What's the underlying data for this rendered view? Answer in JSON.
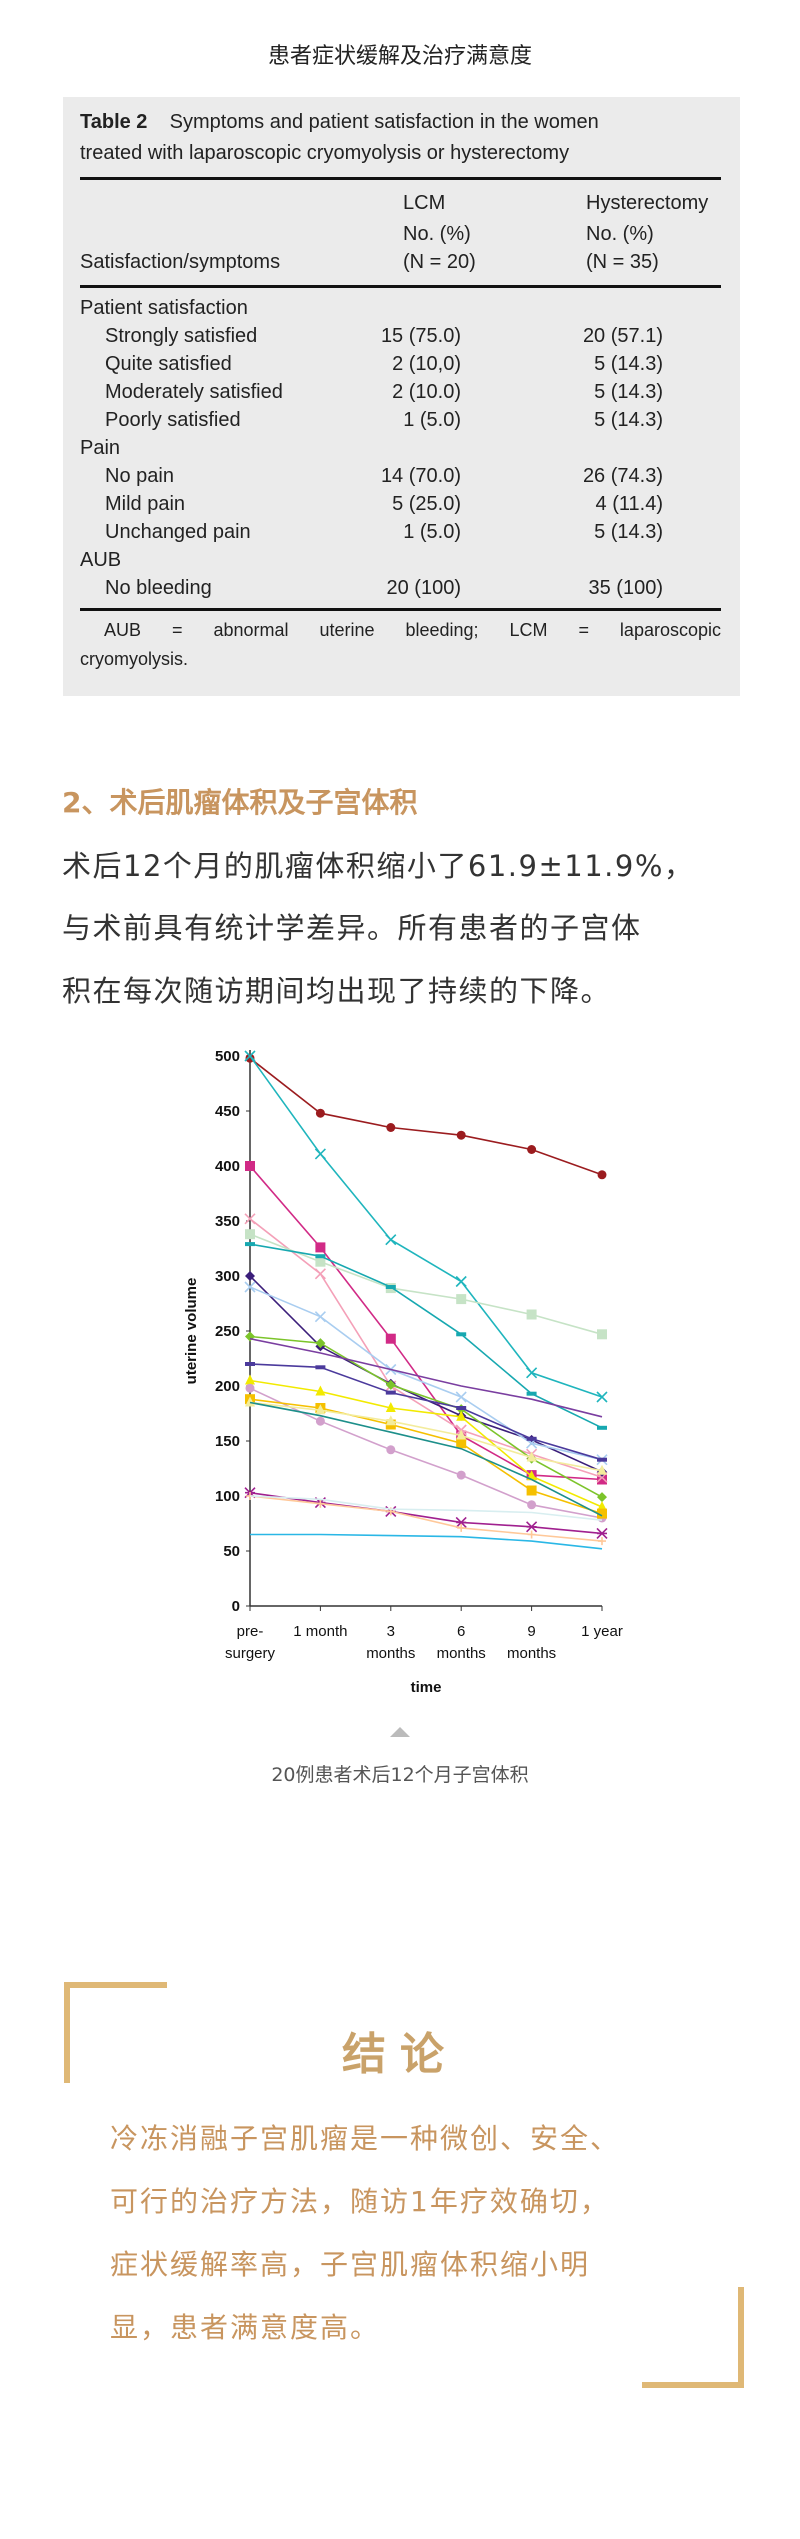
{
  "top_title": "患者症状缓解及治疗满意度",
  "table": {
    "label": "Table 2",
    "caption_line1": "Symptoms and patient satisfaction in the women",
    "caption_line2": "treated with laparoscopic cryomyolysis or hysterectomy",
    "col0_header": "Satisfaction/symptoms",
    "col1_header": [
      "LCM",
      "No. (%)",
      "(N = 20)"
    ],
    "col2_header": [
      "Hysterectomy",
      "No. (%)",
      "(N = 35)"
    ],
    "rows": [
      {
        "label": "Patient satisfaction",
        "group": true,
        "lcm": "",
        "hyst": ""
      },
      {
        "label": "Strongly satisfied",
        "group": false,
        "lcm": "15 (75.0)",
        "hyst": "20 (57.1)"
      },
      {
        "label": "Quite satisfied",
        "group": false,
        "lcm": "2 (10,0)",
        "hyst": "5 (14.3)"
      },
      {
        "label": "Moderately satisfied",
        "group": false,
        "lcm": "2 (10.0)",
        "hyst": "5 (14.3)"
      },
      {
        "label": "Poorly satisfied",
        "group": false,
        "lcm": "1 (5.0)",
        "hyst": "5 (14.3)"
      },
      {
        "label": "Pain",
        "group": true,
        "lcm": "",
        "hyst": ""
      },
      {
        "label": "No pain",
        "group": false,
        "lcm": "14 (70.0)",
        "hyst": "26 (74.3)"
      },
      {
        "label": "Mild pain",
        "group": false,
        "lcm": "5 (25.0)",
        "hyst": "4 (11.4)"
      },
      {
        "label": "Unchanged pain",
        "group": false,
        "lcm": "1 (5.0)",
        "hyst": "5 (14.3)"
      },
      {
        "label": "AUB",
        "group": true,
        "lcm": "",
        "hyst": ""
      },
      {
        "label": "No bleeding",
        "group": false,
        "lcm": "20 (100)",
        "hyst": "35 (100)"
      }
    ],
    "footnote_line1": "AUB = abnormal uterine bleeding; LCM = laparoscopic",
    "footnote_line2": "cryomyolysis."
  },
  "section2": {
    "heading": "2、术后肌瘤体积及子宫体积",
    "lines": [
      "术后12个月的肌瘤体积缩小了61.9±11.9%，",
      "与术前具有统计学差异。所有患者的子宫体",
      "积在每次随访期间均出现了持续的下降。"
    ]
  },
  "chart_data": {
    "type": "line",
    "title": "",
    "xlabel": "time",
    "ylabel": "uterine volume",
    "categories": [
      "pre-\nsurgery",
      "1 month",
      "3\nmonths",
      "6\nmonths",
      "9\nmonths",
      "1 year"
    ],
    "ylim": [
      0,
      500
    ],
    "yticks": [
      0,
      50,
      100,
      150,
      200,
      250,
      300,
      350,
      400,
      450,
      500
    ],
    "grid": false,
    "legend": "none",
    "series": [
      {
        "color": "#9b1c1f",
        "marker": "circle",
        "values": [
          498,
          448,
          435,
          428,
          415,
          392
        ]
      },
      {
        "color": "#1fb5bd",
        "marker": "x",
        "values": [
          500,
          411,
          333,
          295,
          212,
          190
        ]
      },
      {
        "color": "#d12a86",
        "marker": "square",
        "values": [
          400,
          326,
          243,
          155,
          119,
          115
        ]
      },
      {
        "color": "#f4a0b8",
        "marker": "x",
        "values": [
          352,
          302,
          200,
          160,
          138,
          117
        ]
      },
      {
        "color": "#c6e3c6",
        "marker": "square",
        "values": [
          338,
          313,
          289,
          279,
          265,
          247
        ]
      },
      {
        "color": "#17a8b0",
        "marker": "dash",
        "values": [
          329,
          318,
          290,
          247,
          193,
          162
        ]
      },
      {
        "color": "#3b1e7a",
        "marker": "diamond",
        "values": [
          300,
          236,
          202,
          173,
          151,
          122
        ]
      },
      {
        "color": "#a9cdf0",
        "marker": "x",
        "values": [
          290,
          263,
          215,
          190,
          148,
          133
        ]
      },
      {
        "color": "#7cc42a",
        "marker": "diamond",
        "values": [
          245,
          239,
          201,
          179,
          134,
          99
        ]
      },
      {
        "color": "#7a3ea0",
        "marker": "none",
        "values": [
          243,
          230,
          215,
          200,
          188,
          172
        ]
      },
      {
        "color": "#4b3a9c",
        "marker": "dash",
        "values": [
          220,
          217,
          194,
          180,
          152,
          133
        ]
      },
      {
        "color": "#f2ea00",
        "marker": "triangle",
        "values": [
          205,
          195,
          180,
          172,
          118,
          90
        ]
      },
      {
        "color": "#d2a0cc",
        "marker": "circle",
        "values": [
          198,
          168,
          142,
          119,
          92,
          80
        ]
      },
      {
        "color": "#f5c000",
        "marker": "square",
        "values": [
          188,
          180,
          165,
          148,
          105,
          84
        ]
      },
      {
        "color": "#f3ec9c",
        "marker": "triangle",
        "values": [
          185,
          178,
          168,
          155,
          135,
          123
        ]
      },
      {
        "color": "#1d8f8a",
        "marker": "none",
        "values": [
          185,
          173,
          158,
          143,
          115,
          82
        ]
      },
      {
        "color": "#a0208f",
        "marker": "asterisk",
        "values": [
          103,
          94,
          86,
          76,
          72,
          66
        ]
      },
      {
        "color": "#ffc899",
        "marker": "plus",
        "values": [
          100,
          93,
          86,
          71,
          65,
          59
        ]
      },
      {
        "color": "#d8eef0",
        "marker": "none",
        "values": [
          100,
          97,
          88,
          87,
          85,
          78
        ]
      },
      {
        "color": "#2ab7e6",
        "marker": "none",
        "values": [
          65,
          65,
          64,
          63,
          59,
          52
        ]
      }
    ]
  },
  "chart_caption": "20例患者术后12个月子宫体积",
  "conclusion": {
    "title": "结论",
    "lines": [
      "冷冻消融子宫肌瘤是一种微创、安全、",
      "可行的治疗方法，随访1年疗效确切，",
      "症状缓解率高，子宫肌瘤体积缩小明",
      "显，患者满意度高。"
    ]
  },
  "colors": {
    "accent": "#c8955f",
    "bracket": "#dfb876",
    "table_bg": "#ebebeb"
  }
}
